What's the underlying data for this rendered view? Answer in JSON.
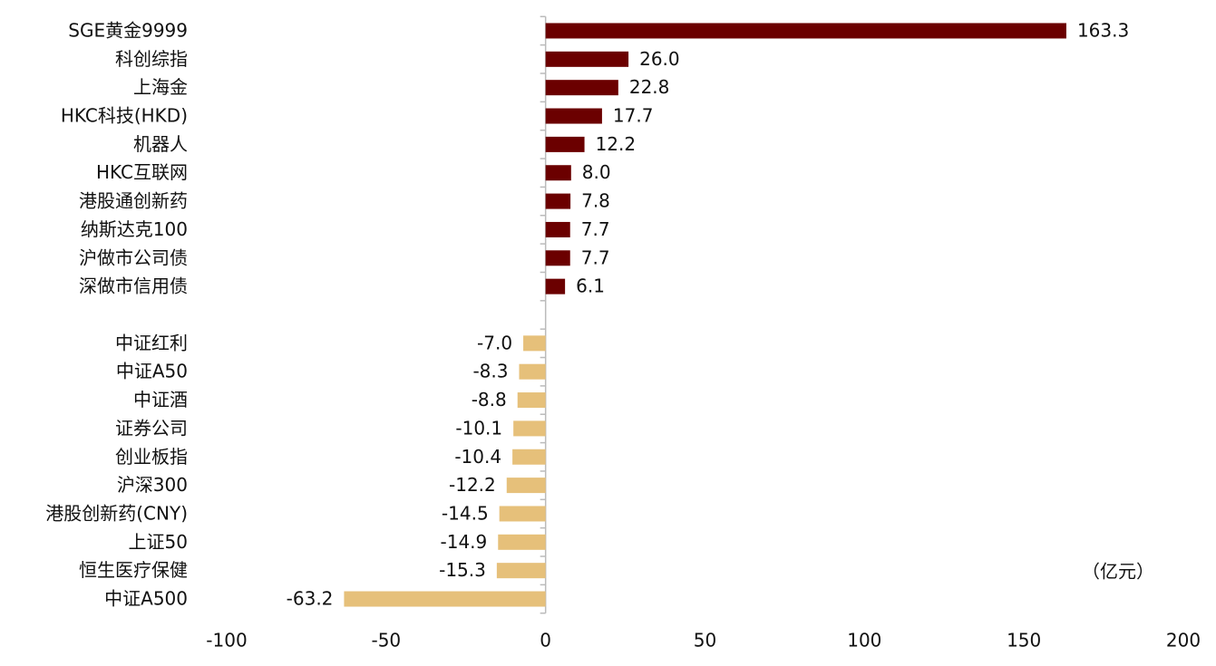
{
  "chart_data": {
    "type": "bar",
    "orientation": "horizontal",
    "categories": [
      "SGE黄金9999",
      "科创综指",
      "上海金",
      "HKC科技(HKD)",
      "机器人",
      "HKC互联网",
      "港股通创新药",
      "纳斯达克100",
      "沪做市公司债",
      "深做市信用债",
      null,
      "中证红利",
      "中证A50",
      "中证酒",
      "证券公司",
      "创业板指",
      "沪深300",
      "港股创新药(CNY)",
      "上证50",
      "恒生医疗保健",
      "中证A500"
    ],
    "values": [
      163.3,
      26.0,
      22.8,
      17.7,
      12.2,
      8.0,
      7.8,
      7.7,
      7.7,
      6.1,
      null,
      -7.0,
      -8.3,
      -8.8,
      -10.1,
      -10.4,
      -12.2,
      -14.5,
      -14.9,
      -15.3,
      -63.2
    ],
    "value_labels": [
      "163.3",
      "26.0",
      "22.8",
      "17.7",
      "12.2",
      "8.0",
      "7.8",
      "7.7",
      "7.7",
      "6.1",
      null,
      "-7.0",
      "-8.3",
      "-8.8",
      "-10.1",
      "-10.4",
      "-12.2",
      "-14.5",
      "-14.9",
      "-15.3",
      "-63.2"
    ],
    "color_positive": "#6b0000",
    "color_negative": "#e6c07a",
    "xlim": [
      -100,
      200
    ],
    "xticks": [
      -100,
      -50,
      0,
      50,
      100,
      150,
      200
    ],
    "unit_note": "（亿元）",
    "grid": false
  }
}
